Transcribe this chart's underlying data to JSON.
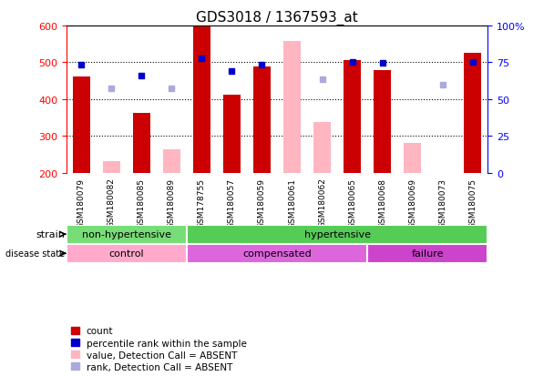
{
  "title": "GDS3018 / 1367593_at",
  "samples": [
    "GSM180079",
    "GSM180082",
    "GSM180085",
    "GSM180089",
    "GSM178755",
    "GSM180057",
    "GSM180059",
    "GSM180061",
    "GSM180062",
    "GSM180065",
    "GSM180068",
    "GSM180069",
    "GSM180073",
    "GSM180075"
  ],
  "count_values": [
    462,
    null,
    362,
    null,
    597,
    412,
    490,
    null,
    null,
    507,
    480,
    null,
    null,
    525
  ],
  "count_absent": [
    null,
    232,
    null,
    265,
    null,
    null,
    null,
    557,
    337,
    null,
    null,
    282,
    null,
    null
  ],
  "percentile_rank": [
    493,
    null,
    465,
    null,
    510,
    477,
    493,
    null,
    null,
    500,
    498,
    null,
    null,
    500
  ],
  "rank_absent": [
    null,
    430,
    null,
    430,
    null,
    null,
    null,
    null,
    455,
    null,
    null,
    null,
    440,
    null
  ],
  "ylim": [
    200,
    600
  ],
  "y2lim": [
    0,
    100
  ],
  "yticks": [
    200,
    300,
    400,
    500,
    600
  ],
  "y2ticks": [
    0,
    25,
    50,
    75,
    100
  ],
  "bar_width": 0.6,
  "strain_groups": [
    {
      "label": "non-hypertensive",
      "start": 0,
      "end": 4,
      "color": "#77DD77"
    },
    {
      "label": "hypertensive",
      "start": 4,
      "end": 14,
      "color": "#55CC55"
    }
  ],
  "disease_groups": [
    {
      "label": "control",
      "start": 0,
      "end": 4,
      "color": "#FFAACC"
    },
    {
      "label": "compensated",
      "start": 4,
      "end": 10,
      "color": "#DD66DD"
    },
    {
      "label": "failure",
      "start": 10,
      "end": 14,
      "color": "#CC44CC"
    }
  ],
  "absent_count_color": "#FFB6C1",
  "present_count_color": "#CC0000",
  "absent_rank_color": "#AAAADD",
  "present_rank_color": "#0000CC",
  "bg_color": "#FFFFFF",
  "plot_bg_color": "#FFFFFF",
  "tick_area_color": "#CCCCCC",
  "grid_color": "#000000",
  "legend_labels": [
    "count",
    "percentile rank within the sample",
    "value, Detection Call = ABSENT",
    "rank, Detection Call = ABSENT"
  ]
}
